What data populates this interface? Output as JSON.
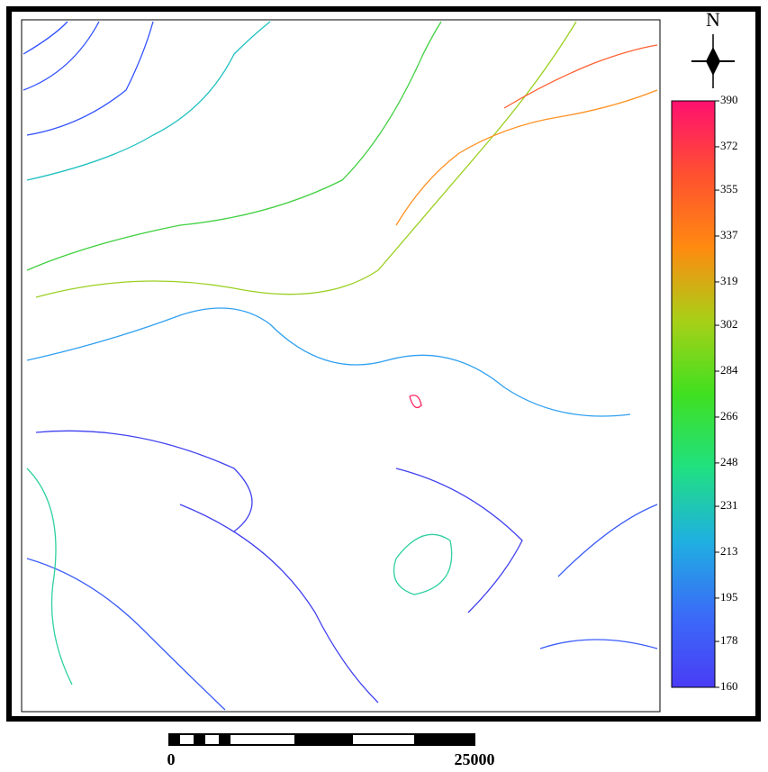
{
  "north": {
    "label": "N"
  },
  "legend": {
    "range": [
      160,
      390
    ],
    "ticks": [
      390,
      372,
      355,
      337,
      319,
      302,
      284,
      266,
      248,
      231,
      213,
      195,
      178,
      160
    ],
    "colors": [
      "#4a3cf5",
      "#3a6cf8",
      "#1fb0e0",
      "#20e080",
      "#40e020",
      "#a8d018",
      "#ff8a10",
      "#ff5030",
      "#ff1070"
    ]
  },
  "scale_bar": {
    "labels": [
      "0",
      "25000"
    ]
  }
}
